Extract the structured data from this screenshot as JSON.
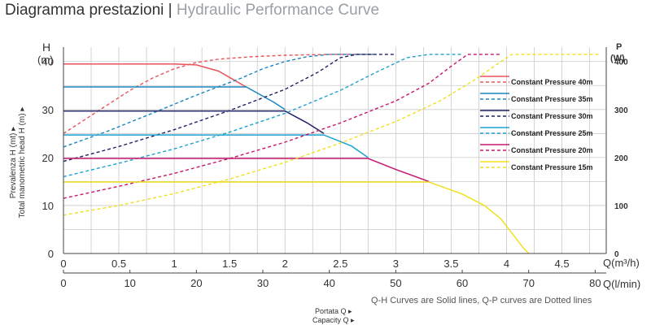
{
  "header": {
    "title_main": "Diagramma prestazioni",
    "title_sep": " | ",
    "title_sub": "Hydraulic Performance Curve"
  },
  "chart_data": {
    "type": "line",
    "left_axis": {
      "label_top": "H",
      "label_unit": "(m)",
      "title_it": "Prevalenza H (mt) ▸",
      "title_en": "Total manometric head H (m) ▸",
      "range": [
        0,
        43
      ],
      "ticks": [
        0,
        10,
        20,
        30,
        40
      ]
    },
    "right_axis": {
      "label_top": "P",
      "label_unit": "(W)",
      "range": [
        0,
        430
      ],
      "ticks": [
        0,
        100,
        200,
        300,
        400
      ]
    },
    "x_axis_m3h": {
      "label": "Q(m³/h)",
      "range": [
        0,
        4.9
      ],
      "ticks": [
        "0",
        "0.5",
        "1",
        "1.5",
        "2",
        "2.5",
        "3",
        "3.5",
        "4",
        "4.5"
      ],
      "tick_values": [
        0,
        0.5,
        1,
        1.5,
        2,
        2.5,
        3,
        3.5,
        4,
        4.5
      ]
    },
    "x_axis_lmin": {
      "label": "Q(l/min)",
      "ticks": [
        "0",
        "10",
        "20",
        "30",
        "40",
        "50",
        "60",
        "70",
        "80"
      ],
      "tick_values_m3h": [
        0,
        0.6,
        1.2,
        1.8,
        2.4,
        3.0,
        3.6,
        4.2,
        4.8
      ]
    },
    "note": "Q-H Curves are Solid lines, Q-P curves are Dotted lines",
    "bottom_label_it": "Portata Q ▸",
    "bottom_label_en": "Capacity Q ▸",
    "grid": true,
    "legend_position": "right",
    "series": [
      {
        "name": "Constant Pressure 40m",
        "color": "#e8545a",
        "qh": [
          [
            0,
            39.5
          ],
          [
            0.5,
            39.5
          ],
          [
            1,
            39.5
          ],
          [
            1.2,
            39.3
          ],
          [
            1.4,
            38.0
          ],
          [
            1.55,
            36.0
          ],
          [
            1.65,
            34.7
          ]
        ],
        "qp": [
          [
            0,
            250
          ],
          [
            0.2,
            280
          ],
          [
            0.4,
            310
          ],
          [
            0.6,
            340
          ],
          [
            0.8,
            365
          ],
          [
            1.0,
            385
          ],
          [
            1.2,
            398
          ],
          [
            1.4,
            405
          ],
          [
            1.7,
            410
          ],
          [
            2.0,
            413
          ],
          [
            2.4,
            415
          ],
          [
            2.8,
            415
          ]
        ]
      },
      {
        "name": "Constant Pressure 35m",
        "color": "#1a86bf",
        "qh": [
          [
            0,
            34.7
          ],
          [
            0.8,
            34.7
          ],
          [
            1.65,
            34.7
          ],
          [
            1.9,
            31.5
          ],
          [
            2.0,
            30.0
          ]
        ],
        "qp": [
          [
            0,
            222
          ],
          [
            0.4,
            255
          ],
          [
            0.8,
            292
          ],
          [
            1.2,
            330
          ],
          [
            1.6,
            365
          ],
          [
            1.8,
            385
          ],
          [
            2.0,
            400
          ],
          [
            2.2,
            410
          ],
          [
            2.4,
            415
          ],
          [
            2.8,
            415
          ]
        ]
      },
      {
        "name": "Constant Pressure 30m",
        "color": "#1e2266",
        "qh": [
          [
            0,
            29.7
          ],
          [
            1.0,
            29.7
          ],
          [
            2.0,
            29.7
          ],
          [
            2.2,
            27.2
          ],
          [
            2.35,
            25.0
          ]
        ],
        "qp": [
          [
            0,
            192
          ],
          [
            0.5,
            223
          ],
          [
            1.0,
            258
          ],
          [
            1.5,
            298
          ],
          [
            2.0,
            342
          ],
          [
            2.3,
            378
          ],
          [
            2.5,
            408
          ],
          [
            2.65,
            415
          ],
          [
            3.0,
            415
          ]
        ]
      },
      {
        "name": "Constant Pressure 25m",
        "color": "#1da2cf",
        "qh": [
          [
            0,
            24.7
          ],
          [
            1.2,
            24.7
          ],
          [
            2.35,
            24.7
          ],
          [
            2.6,
            22.4
          ],
          [
            2.75,
            20.0
          ]
        ],
        "qp": [
          [
            0,
            160
          ],
          [
            0.5,
            188
          ],
          [
            1.0,
            218
          ],
          [
            1.5,
            253
          ],
          [
            2.0,
            292
          ],
          [
            2.5,
            340
          ],
          [
            2.8,
            375
          ],
          [
            3.1,
            408
          ],
          [
            3.3,
            415
          ],
          [
            3.6,
            415
          ]
        ]
      },
      {
        "name": "Constant Pressure 20m",
        "color": "#c8166e",
        "qh": [
          [
            0,
            19.8
          ],
          [
            1.5,
            19.8
          ],
          [
            2.75,
            19.8
          ],
          [
            3.0,
            17.5
          ],
          [
            3.3,
            15.0
          ]
        ],
        "qp": [
          [
            0,
            115
          ],
          [
            0.5,
            140
          ],
          [
            1.0,
            167
          ],
          [
            1.5,
            198
          ],
          [
            2.0,
            232
          ],
          [
            2.5,
            272
          ],
          [
            3.0,
            318
          ],
          [
            3.3,
            355
          ],
          [
            3.5,
            390
          ],
          [
            3.65,
            415
          ],
          [
            3.95,
            415
          ]
        ]
      },
      {
        "name": "Constant Pressure 15m",
        "color": "#f0e020",
        "qh": [
          [
            0,
            14.9
          ],
          [
            1.5,
            14.9
          ],
          [
            3.3,
            14.9
          ],
          [
            3.6,
            12.4
          ],
          [
            3.8,
            10.0
          ],
          [
            3.95,
            7.2
          ],
          [
            4.05,
            4.2
          ],
          [
            4.15,
            1.2
          ],
          [
            4.2,
            0
          ]
        ],
        "qp": [
          [
            0,
            80
          ],
          [
            0.5,
            100
          ],
          [
            1.0,
            125
          ],
          [
            1.5,
            155
          ],
          [
            2.0,
            190
          ],
          [
            2.5,
            230
          ],
          [
            3.0,
            275
          ],
          [
            3.4,
            318
          ],
          [
            3.7,
            360
          ],
          [
            3.95,
            400
          ],
          [
            4.05,
            415
          ],
          [
            4.4,
            415
          ],
          [
            4.85,
            415
          ]
        ]
      }
    ]
  }
}
